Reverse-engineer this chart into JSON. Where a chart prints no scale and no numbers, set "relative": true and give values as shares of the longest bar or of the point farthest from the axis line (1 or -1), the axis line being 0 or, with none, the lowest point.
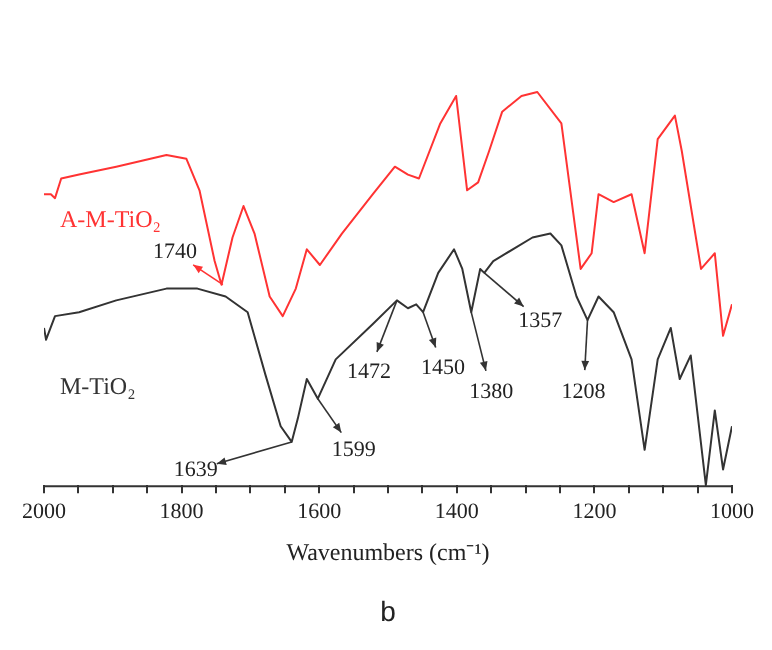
{
  "chart_data": {
    "type": "line",
    "title": "b",
    "xlabel": "Wavenumbers (cm⁻¹)",
    "relative": true,
    "xlim": [
      2000,
      1000
    ],
    "xticks": [
      2000,
      {
        "value": 1950,
        "label": null
      },
      {
        "value": 1900,
        "label": null
      },
      {
        "value": 1850,
        "label": null
      },
      1800,
      {
        "value": 1750,
        "label": null
      },
      {
        "value": 1700,
        "label": null
      },
      {
        "value": 1650,
        "label": null
      },
      1600,
      {
        "value": 1550,
        "label": null
      },
      {
        "value": 1500,
        "label": null
      },
      {
        "value": 1450,
        "label": null
      },
      1400,
      {
        "value": 1350,
        "label": null
      },
      {
        "value": 1300,
        "label": null
      },
      {
        "value": 1250,
        "label": null
      },
      1200,
      {
        "value": 1150,
        "label": null
      },
      {
        "value": 1100,
        "label": null
      },
      {
        "value": 1050,
        "label": null
      },
      1000
    ],
    "grid": false,
    "legend": false,
    "marker": "none",
    "line_style": "solid",
    "series": [
      {
        "name": "A-M-TiO₂",
        "color": "#ff3333",
        "x": [
          2000,
          1990,
          1984,
          1975,
          1949,
          1895,
          1822,
          1793,
          1774,
          1752,
          1742,
          1726,
          1710,
          1694,
          1672,
          1653,
          1634,
          1618,
          1599,
          1567,
          1522,
          1490,
          1471,
          1455,
          1424,
          1401,
          1385,
          1369,
          1353,
          1334,
          1306,
          1283,
          1248,
          1220,
          1204,
          1194,
          1172,
          1146,
          1127,
          1108,
          1083,
          1073,
          1045,
          1025,
          1013,
          1000
        ],
        "values": [
          0.74,
          0.74,
          0.73,
          0.78,
          0.79,
          0.81,
          0.84,
          0.83,
          0.75,
          0.57,
          0.51,
          0.63,
          0.71,
          0.64,
          0.48,
          0.43,
          0.5,
          0.6,
          0.56,
          0.64,
          0.74,
          0.81,
          0.79,
          0.78,
          0.92,
          0.99,
          0.75,
          0.77,
          0.85,
          0.95,
          0.99,
          1,
          0.92,
          0.55,
          0.59,
          0.74,
          0.72,
          0.74,
          0.59,
          0.88,
          0.94,
          0.85,
          0.55,
          0.59,
          0.38,
          0.46
        ]
      },
      {
        "name": "M-TiO₂",
        "color": "#333333",
        "x": [
          2000,
          1997,
          1984,
          1949,
          1895,
          1822,
          1777,
          1736,
          1704,
          1678,
          1656,
          1640,
          1631,
          1618,
          1602,
          1576,
          1522,
          1487,
          1471,
          1459,
          1449,
          1427,
          1404,
          1392,
          1379,
          1366,
          1360,
          1347,
          1290,
          1264,
          1248,
          1226,
          1210,
          1194,
          1172,
          1146,
          1127,
          1108,
          1089,
          1076,
          1060,
          1038,
          1025,
          1013,
          1000
        ],
        "values": [
          0.4,
          0.37,
          0.43,
          0.44,
          0.47,
          0.5,
          0.5,
          0.48,
          0.44,
          0.28,
          0.15,
          0.11,
          0.17,
          0.27,
          0.22,
          0.32,
          0.41,
          0.47,
          0.45,
          0.46,
          0.44,
          0.54,
          0.6,
          0.55,
          0.44,
          0.55,
          0.54,
          0.57,
          0.63,
          0.64,
          0.61,
          0.48,
          0.42,
          0.48,
          0.44,
          0.32,
          0.09,
          0.32,
          0.4,
          0.27,
          0.33,
          0,
          0.19,
          0.04,
          0.15
        ]
      }
    ],
    "annotations": [
      {
        "text": "1740",
        "x": 1740,
        "y": 0.51
      },
      {
        "text": "1639",
        "x": 1640,
        "y": 0.11
      },
      {
        "text": "1599",
        "x": 1602,
        "y": 0.22
      },
      {
        "text": "1472",
        "x": 1487,
        "y": 0.47
      },
      {
        "text": "1450",
        "x": 1449,
        "y": 0.44
      },
      {
        "text": "1380",
        "x": 1379,
        "y": 0.44
      },
      {
        "text": "1357",
        "x": 1360,
        "y": 0.54
      },
      {
        "text": "1208",
        "x": 1210,
        "y": 0.42
      }
    ]
  }
}
